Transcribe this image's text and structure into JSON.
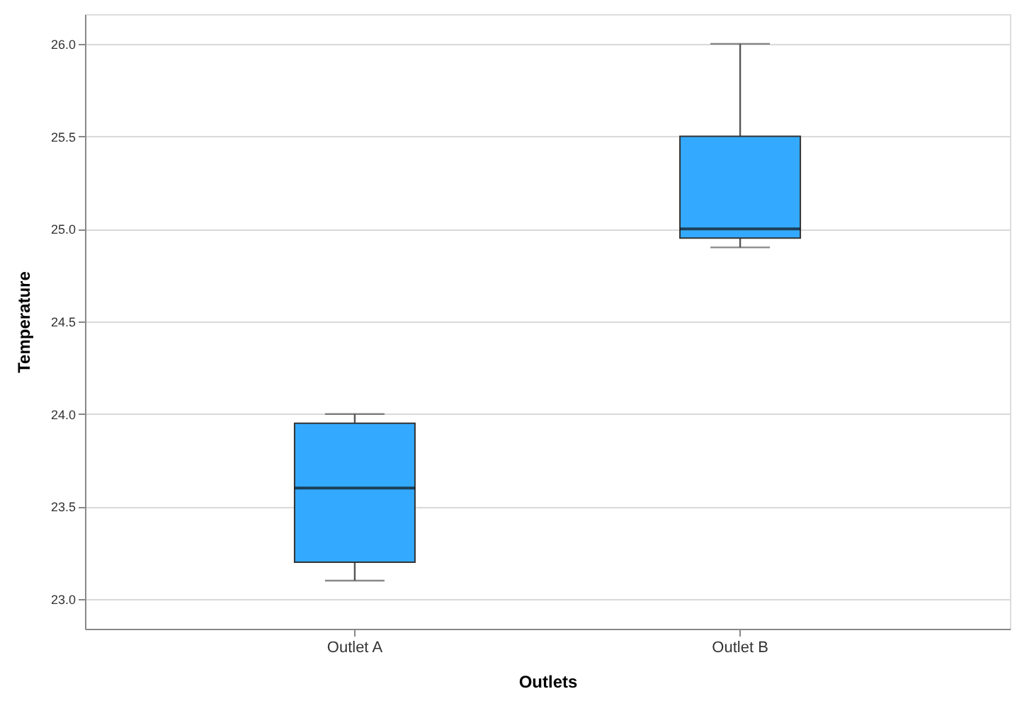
{
  "chart_data": {
    "type": "box",
    "xlabel": "Outlets",
    "ylabel": "Temperature",
    "categories": [
      "Outlet A",
      "Outlet B"
    ],
    "series": [
      {
        "color": "#33aaff",
        "boxes": [
          {
            "low": 23.1,
            "q1": 23.2,
            "median": 23.6,
            "q3": 23.95,
            "high": 24.0
          },
          {
            "low": 24.9,
            "q1": 24.95,
            "median": 25.0,
            "q3": 25.5,
            "high": 26.0
          }
        ]
      }
    ],
    "ylim": [
      22.84,
      26.16
    ],
    "yticks": [
      {
        "value": 23,
        "label": "23.0"
      },
      {
        "value": 23.5,
        "label": "23.5"
      },
      {
        "value": 24,
        "label": "24.0"
      },
      {
        "value": 24.5,
        "label": "24.5"
      },
      {
        "value": 25,
        "label": "25.0"
      },
      {
        "value": 25.5,
        "label": "25.5"
      },
      {
        "value": 26,
        "label": "26.0"
      }
    ],
    "grid": "y",
    "legend": false
  }
}
